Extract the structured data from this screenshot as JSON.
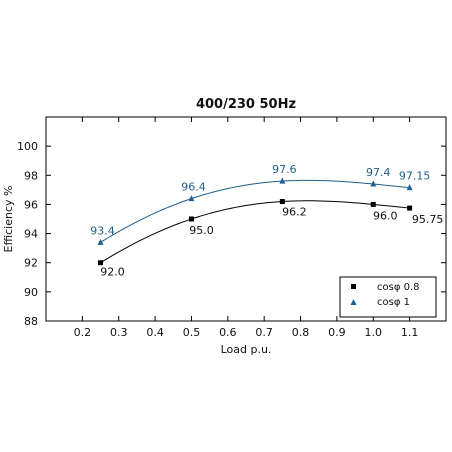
{
  "chart_data": {
    "type": "line",
    "title": "400/230 50Hz",
    "xlabel": "Load p.u.",
    "ylabel": "Efficiency %",
    "xlim": [
      0.1,
      1.2
    ],
    "ylim": [
      88,
      102
    ],
    "x_ticks": [
      "0.2",
      "0.3",
      "0.4",
      "0.5",
      "0.6",
      "0.7",
      "0.8",
      "0.9",
      "1.0",
      "1.1"
    ],
    "y_ticks": [
      "88",
      "90",
      "92",
      "94",
      "96",
      "98",
      "100"
    ],
    "grid": false,
    "legend_position": "bottom-right",
    "series": [
      {
        "name": "cosφ 0.8",
        "marker": "square",
        "color": "#000000",
        "x": [
          0.25,
          0.5,
          0.75,
          1.0,
          1.1
        ],
        "values": [
          92.0,
          95.0,
          96.2,
          96.0,
          95.75
        ],
        "labels": [
          "92.0",
          "95.0",
          "96.2",
          "96.0",
          "95.75"
        ]
      },
      {
        "name": "cosφ 1",
        "marker": "triangle",
        "color": "#1f5f8b",
        "x": [
          0.25,
          0.5,
          0.75,
          1.0,
          1.1
        ],
        "values": [
          93.4,
          96.4,
          97.6,
          97.4,
          97.15
        ],
        "labels": [
          "93.4",
          "96.4",
          "97.6",
          "97.4",
          "97.15"
        ]
      }
    ]
  }
}
